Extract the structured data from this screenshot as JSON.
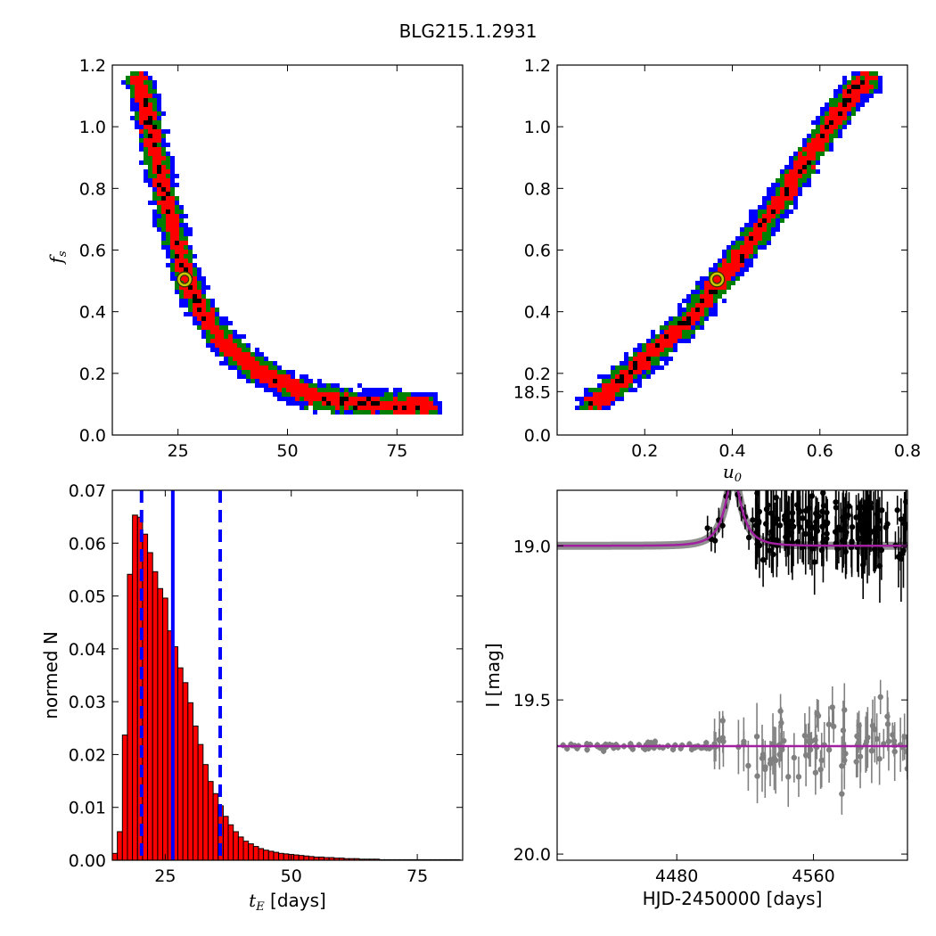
{
  "title": "BLG215.1.2931",
  "chart_data": [
    {
      "id": "fs_vs_tE",
      "type": "heatmap",
      "xlim": [
        10,
        90
      ],
      "ylim": [
        0.0,
        1.2
      ],
      "xticks": [
        "25",
        "50",
        "75"
      ],
      "yticks": [
        "0.0",
        "0.2",
        "0.4",
        "0.6",
        "0.8",
        "1.0",
        "1.2"
      ],
      "xlabel": "",
      "ylabel": "f",
      "ylabel_sub": "s",
      "levels": [
        "black",
        "red",
        "green",
        "blue"
      ],
      "ridge": [
        [
          16,
          1.15
        ],
        [
          18,
          1.05
        ],
        [
          20,
          0.9
        ],
        [
          22,
          0.78
        ],
        [
          24,
          0.66
        ],
        [
          26,
          0.55
        ],
        [
          28,
          0.47
        ],
        [
          31,
          0.39
        ],
        [
          35,
          0.31
        ],
        [
          40,
          0.24
        ],
        [
          47,
          0.18
        ],
        [
          55,
          0.13
        ],
        [
          65,
          0.105
        ],
        [
          75,
          0.095
        ],
        [
          82,
          0.09
        ]
      ],
      "best_fit": {
        "x": 26.5,
        "y": 0.505
      }
    },
    {
      "id": "fs_vs_u0",
      "type": "heatmap",
      "xlim": [
        0.0,
        0.8
      ],
      "ylim": [
        0.0,
        1.2
      ],
      "xticks": [
        "0.2",
        "0.4",
        "0.6",
        "0.8"
      ],
      "yticks": [
        "0.0",
        "0.2",
        "0.4",
        "0.6",
        "0.8",
        "1.0",
        "1.2"
      ],
      "xlabel": "u",
      "xlabel_sub": "0",
      "ylabel": "",
      "levels": [
        "black",
        "red",
        "green",
        "blue"
      ],
      "ridge": [
        [
          0.08,
          0.1
        ],
        [
          0.15,
          0.18
        ],
        [
          0.22,
          0.27
        ],
        [
          0.3,
          0.37
        ],
        [
          0.37,
          0.5
        ],
        [
          0.44,
          0.62
        ],
        [
          0.5,
          0.74
        ],
        [
          0.56,
          0.87
        ],
        [
          0.62,
          1.0
        ],
        [
          0.68,
          1.12
        ],
        [
          0.71,
          1.15
        ]
      ],
      "best_fit": {
        "x": 0.365,
        "y": 0.505
      }
    },
    {
      "id": "tE_histogram",
      "type": "bar",
      "xlim": [
        14.5,
        84
      ],
      "ylim": [
        0.0,
        0.07
      ],
      "xticks": [
        "25",
        "50",
        "75"
      ],
      "yticks": [
        "0.00",
        "0.01",
        "0.02",
        "0.03",
        "0.04",
        "0.05",
        "0.06",
        "0.07"
      ],
      "xlabel": "t",
      "xlabel_sub": "E",
      "xlabel_unit": " [days]",
      "ylabel": "normed N",
      "bin_start": 14.5,
      "bin_width": 1.0,
      "values": [
        0.0013,
        0.0054,
        0.0237,
        0.0541,
        0.0653,
        0.0649,
        0.0617,
        0.0582,
        0.0546,
        0.0514,
        0.0496,
        0.0434,
        0.0404,
        0.0364,
        0.0336,
        0.0298,
        0.0254,
        0.0219,
        0.0181,
        0.0149,
        0.0126,
        0.0103,
        0.0083,
        0.0067,
        0.0054,
        0.0044,
        0.0036,
        0.0031,
        0.0026,
        0.0022,
        0.0019,
        0.0017,
        0.0015,
        0.0013,
        0.0012,
        0.0011,
        0.001,
        0.0009,
        0.0008,
        0.0007,
        0.0006,
        0.0006,
        0.0005,
        0.0005,
        0.0004,
        0.0004,
        0.0003,
        0.0003,
        0.0003,
        0.0002,
        0.0002,
        0.0002,
        0.0002,
        0.0001,
        0.0001,
        0.0001,
        0.0001,
        0.0001,
        0.0001,
        0.0001,
        0.0001,
        0.0001,
        0.0001,
        0.0001,
        0.0001,
        0.0001,
        0.0001,
        0.0001,
        0.0001
      ],
      "bar_color": "#ff0000",
      "median": 26.5,
      "percentiles": [
        20.3,
        35.9
      ],
      "line_color": "#0000ff"
    },
    {
      "id": "light_curve",
      "type": "scatter",
      "xlim": [
        4410,
        4615
      ],
      "ylim": [
        20.02,
        18.82
      ],
      "xticks": [
        "4480",
        "4560"
      ],
      "yticks": [
        "18.5",
        "19.0",
        "19.5",
        "20.0"
      ],
      "xlabel": "HJD-2450000 [days]",
      "ylabel": "I [mag]",
      "model": {
        "t0": 4513,
        "baseline": 19.0,
        "peak": 18.77,
        "tE": 26.5,
        "u0": 0.365,
        "fs": 0.505,
        "color": "#a020a0"
      },
      "residual_baseline": 19.65,
      "data_color": "#000000",
      "residual_color": "#808080"
    }
  ]
}
